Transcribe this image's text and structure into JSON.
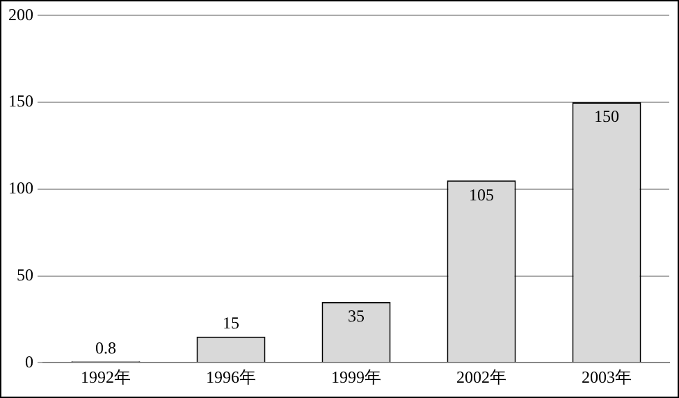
{
  "chart_data": {
    "type": "bar",
    "categories": [
      "1992年",
      "1996年",
      "1999年",
      "2002年",
      "2003年"
    ],
    "values": [
      0.8,
      15,
      35,
      105,
      150
    ],
    "color": "#d9d9d9",
    "ylim": [
      0,
      200
    ],
    "yticks": [
      0,
      50,
      100,
      150,
      200
    ],
    "grid": "y",
    "data_labels": true,
    "legend": false
  }
}
